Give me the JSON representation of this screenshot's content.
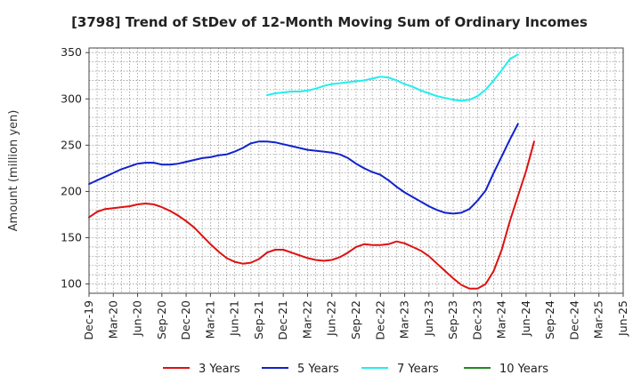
{
  "chart_data": {
    "type": "line",
    "title": "[3798]  Trend of StDev of 12-Month Moving Sum of Ordinary Incomes",
    "xlabel": "",
    "ylabel": "Amount (million yen)",
    "ylim": [
      90,
      355
    ],
    "yticks": [
      100,
      150,
      200,
      250,
      300,
      350
    ],
    "x_range": [
      0,
      66
    ],
    "xticks": [
      {
        "label": "Dec-19",
        "x": 0
      },
      {
        "label": "Mar-20",
        "x": 3
      },
      {
        "label": "Jun-20",
        "x": 6
      },
      {
        "label": "Sep-20",
        "x": 9
      },
      {
        "label": "Dec-20",
        "x": 12
      },
      {
        "label": "Mar-21",
        "x": 15
      },
      {
        "label": "Jun-21",
        "x": 18
      },
      {
        "label": "Sep-21",
        "x": 21
      },
      {
        "label": "Dec-21",
        "x": 24
      },
      {
        "label": "Mar-22",
        "x": 27
      },
      {
        "label": "Jun-22",
        "x": 30
      },
      {
        "label": "Sep-22",
        "x": 33
      },
      {
        "label": "Dec-22",
        "x": 36
      },
      {
        "label": "Mar-23",
        "x": 39
      },
      {
        "label": "Jun-23",
        "x": 42
      },
      {
        "label": "Sep-23",
        "x": 45
      },
      {
        "label": "Dec-23",
        "x": 48
      },
      {
        "label": "Mar-24",
        "x": 51
      },
      {
        "label": "Jun-24",
        "x": 54
      },
      {
        "label": "Sep-24",
        "x": 57
      },
      {
        "label": "Dec-24",
        "x": 60
      },
      {
        "label": "Mar-25",
        "x": 63
      },
      {
        "label": "Jun-25",
        "x": 66
      }
    ],
    "grid": true,
    "legend_position": "bottom",
    "series": [
      {
        "name": "3 Years",
        "color": "#dd1111",
        "points": [
          [
            0,
            172
          ],
          [
            1,
            178
          ],
          [
            2,
            181
          ],
          [
            3,
            182
          ],
          [
            4,
            183
          ],
          [
            5,
            184
          ],
          [
            6,
            186
          ],
          [
            7,
            187
          ],
          [
            8,
            186
          ],
          [
            9,
            183
          ],
          [
            10,
            179
          ],
          [
            11,
            174
          ],
          [
            12,
            168
          ],
          [
            13,
            161
          ],
          [
            14,
            152
          ],
          [
            15,
            143
          ],
          [
            16,
            135
          ],
          [
            17,
            128
          ],
          [
            18,
            124
          ],
          [
            19,
            122
          ],
          [
            20,
            123
          ],
          [
            21,
            127
          ],
          [
            22,
            134
          ],
          [
            23,
            137
          ],
          [
            24,
            137
          ],
          [
            25,
            134
          ],
          [
            26,
            131
          ],
          [
            27,
            128
          ],
          [
            28,
            126
          ],
          [
            29,
            125
          ],
          [
            30,
            126
          ],
          [
            31,
            129
          ],
          [
            32,
            134
          ],
          [
            33,
            140
          ],
          [
            34,
            143
          ],
          [
            35,
            142
          ],
          [
            36,
            142
          ],
          [
            37,
            143
          ],
          [
            38,
            146
          ],
          [
            39,
            144
          ],
          [
            40,
            140
          ],
          [
            41,
            136
          ],
          [
            42,
            130
          ],
          [
            43,
            122
          ],
          [
            44,
            114
          ],
          [
            45,
            106
          ],
          [
            46,
            99
          ],
          [
            47,
            95
          ],
          [
            48,
            95
          ],
          [
            49,
            100
          ],
          [
            50,
            114
          ],
          [
            51,
            137
          ],
          [
            52,
            168
          ],
          [
            53,
            195
          ],
          [
            54,
            222
          ],
          [
            55,
            254
          ]
        ]
      },
      {
        "name": "5 Years",
        "color": "#1122cc",
        "points": [
          [
            0,
            208
          ],
          [
            1,
            212
          ],
          [
            2,
            216
          ],
          [
            3,
            220
          ],
          [
            4,
            224
          ],
          [
            5,
            227
          ],
          [
            6,
            230
          ],
          [
            7,
            231
          ],
          [
            8,
            231
          ],
          [
            9,
            229
          ],
          [
            10,
            229
          ],
          [
            11,
            230
          ],
          [
            12,
            232
          ],
          [
            13,
            234
          ],
          [
            14,
            236
          ],
          [
            15,
            237
          ],
          [
            16,
            239
          ],
          [
            17,
            240
          ],
          [
            18,
            243
          ],
          [
            19,
            247
          ],
          [
            20,
            252
          ],
          [
            21,
            254
          ],
          [
            22,
            254
          ],
          [
            23,
            253
          ],
          [
            24,
            251
          ],
          [
            25,
            249
          ],
          [
            26,
            247
          ],
          [
            27,
            245
          ],
          [
            28,
            244
          ],
          [
            29,
            243
          ],
          [
            30,
            242
          ],
          [
            31,
            240
          ],
          [
            32,
            236
          ],
          [
            33,
            230
          ],
          [
            34,
            225
          ],
          [
            35,
            221
          ],
          [
            36,
            218
          ],
          [
            37,
            212
          ],
          [
            38,
            205
          ],
          [
            39,
            199
          ],
          [
            40,
            194
          ],
          [
            41,
            189
          ],
          [
            42,
            184
          ],
          [
            43,
            180
          ],
          [
            44,
            177
          ],
          [
            45,
            176
          ],
          [
            46,
            177
          ],
          [
            47,
            181
          ],
          [
            48,
            190
          ],
          [
            49,
            201
          ],
          [
            50,
            220
          ],
          [
            51,
            238
          ],
          [
            52,
            256
          ],
          [
            53,
            273
          ]
        ]
      },
      {
        "name": "7 Years",
        "color": "#22eeee",
        "points": [
          [
            22,
            304
          ],
          [
            23,
            306
          ],
          [
            24,
            307
          ],
          [
            25,
            308
          ],
          [
            26,
            308
          ],
          [
            27,
            309
          ],
          [
            28,
            311
          ],
          [
            29,
            314
          ],
          [
            30,
            316
          ],
          [
            31,
            317
          ],
          [
            32,
            318
          ],
          [
            33,
            319
          ],
          [
            34,
            320
          ],
          [
            35,
            322
          ],
          [
            36,
            324
          ],
          [
            37,
            323
          ],
          [
            38,
            320
          ],
          [
            39,
            316
          ],
          [
            40,
            313
          ],
          [
            41,
            309
          ],
          [
            42,
            306
          ],
          [
            43,
            303
          ],
          [
            44,
            301
          ],
          [
            45,
            299
          ],
          [
            46,
            298
          ],
          [
            47,
            299
          ],
          [
            48,
            303
          ],
          [
            49,
            310
          ],
          [
            50,
            320
          ],
          [
            51,
            331
          ],
          [
            52,
            343
          ],
          [
            53,
            348
          ]
        ]
      },
      {
        "name": "10 Years",
        "color": "#228822",
        "points": []
      }
    ]
  }
}
